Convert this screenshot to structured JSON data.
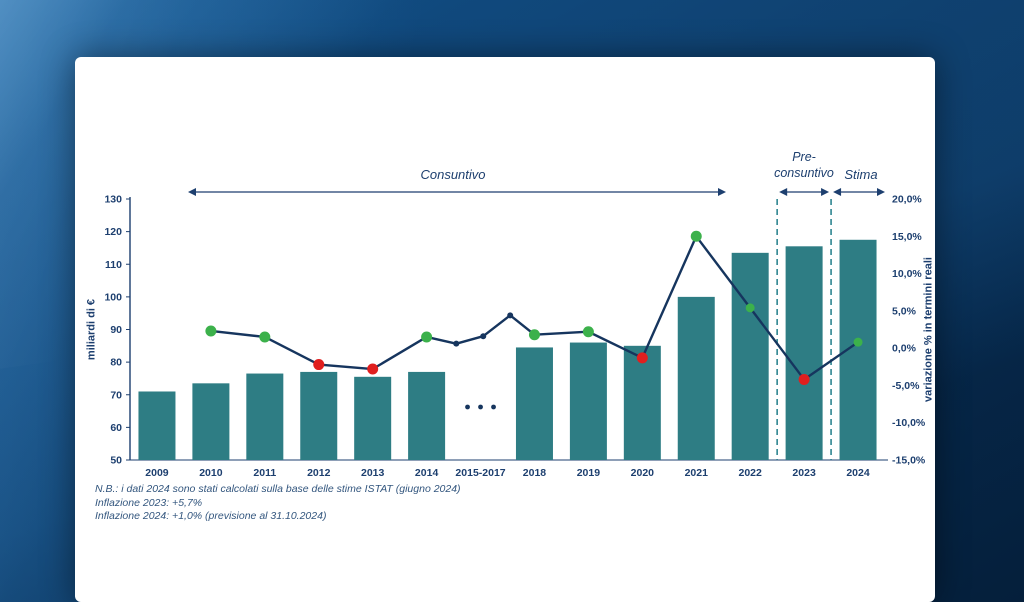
{
  "colors": {
    "bar": "#2E7D84",
    "line": "#16355E",
    "dot_green": "#3CB14B",
    "dot_red": "#E01F1F",
    "dot_navy": "#16355E",
    "divider": "#2E8691",
    "axis": "#1D3F6F",
    "text": "#1D3F6F",
    "panel": "#FFFFFF",
    "background_navy": "#062A4E"
  },
  "chart_data": {
    "type": "bar+line",
    "title": "",
    "categories": [
      "2009",
      "2010",
      "2011",
      "2012",
      "2013",
      "2014",
      "2015-2017",
      "2018",
      "2019",
      "2020",
      "2021",
      "2022",
      "2023",
      "2024"
    ],
    "bars": {
      "name": "miliardi di €",
      "values": [
        71,
        73.5,
        76.5,
        77,
        75.5,
        77,
        null,
        84.5,
        86,
        85,
        100,
        113.5,
        115.5,
        117.5
      ]
    },
    "line": {
      "name": "variazione % in termini reali",
      "points": [
        {
          "category": "2010",
          "slot": 1,
          "pct": 2.3,
          "color": "green",
          "size": "normal"
        },
        {
          "category": "2011",
          "slot": 2,
          "pct": 1.5,
          "color": "green",
          "size": "normal"
        },
        {
          "category": "2012",
          "slot": 3,
          "pct": -2.2,
          "color": "red",
          "size": "normal"
        },
        {
          "category": "2013",
          "slot": 4,
          "pct": -2.8,
          "color": "red",
          "size": "normal"
        },
        {
          "category": "2014",
          "slot": 5,
          "pct": 1.5,
          "color": "green",
          "size": "normal"
        },
        {
          "category": "2015",
          "slot": 5.55,
          "pct": 0.6,
          "color": "navy",
          "size": "small"
        },
        {
          "category": "2016",
          "slot": 6.05,
          "pct": 1.6,
          "color": "navy",
          "size": "small"
        },
        {
          "category": "2017",
          "slot": 6.55,
          "pct": 4.4,
          "color": "navy",
          "size": "small"
        },
        {
          "category": "2018",
          "slot": 7,
          "pct": 1.8,
          "color": "green",
          "size": "normal"
        },
        {
          "category": "2019",
          "slot": 8,
          "pct": 2.2,
          "color": "green",
          "size": "normal"
        },
        {
          "category": "2020",
          "slot": 9,
          "pct": -1.3,
          "color": "red",
          "size": "normal"
        },
        {
          "category": "2021",
          "slot": 10,
          "pct": 15.0,
          "color": "green",
          "size": "normal"
        },
        {
          "category": "2022",
          "slot": 11,
          "pct": 5.4,
          "color": "green",
          "size": "medium"
        },
        {
          "category": "2023",
          "slot": 12,
          "pct": -4.2,
          "color": "red",
          "size": "normal"
        },
        {
          "category": "2024",
          "slot": 13,
          "pct": 0.8,
          "color": "green",
          "size": "medium"
        }
      ]
    },
    "left_axis": {
      "label": "miliardi di €",
      "min": 50,
      "max": 130,
      "ticks": [
        130,
        120,
        110,
        100,
        90,
        80,
        70,
        60,
        50
      ]
    },
    "right_axis": {
      "label": "variazione % in termini reali",
      "min": -15,
      "max": 20,
      "tick_values": [
        20,
        15,
        10,
        5,
        0,
        -5,
        -10,
        -15
      ],
      "tick_labels": [
        "20,0%",
        "15,0%",
        "10,0%",
        "5,0%",
        "0,0%",
        "-5,0%",
        "-10,0%",
        "-15,0%"
      ]
    },
    "gap_marker": {
      "slot": 6,
      "style": "three-dots"
    },
    "dividers_after_slots": [
      11,
      12
    ],
    "annotations": {
      "consuntivo": {
        "label": "Consuntivo"
      },
      "preconsuntivo": {
        "label_line1": "Pre-",
        "label_line2": "consuntivo"
      },
      "stima": {
        "label": "Stima"
      }
    },
    "legend": "none",
    "grid": "off"
  },
  "notes": [
    "N.B.: i dati 2024 sono stati calcolati sulla base delle stime ISTAT (giugno 2024)",
    "Inflazione 2023: +5,7%",
    "Inflazione 2024: +1,0% (previsione al 31.10.2024)"
  ]
}
